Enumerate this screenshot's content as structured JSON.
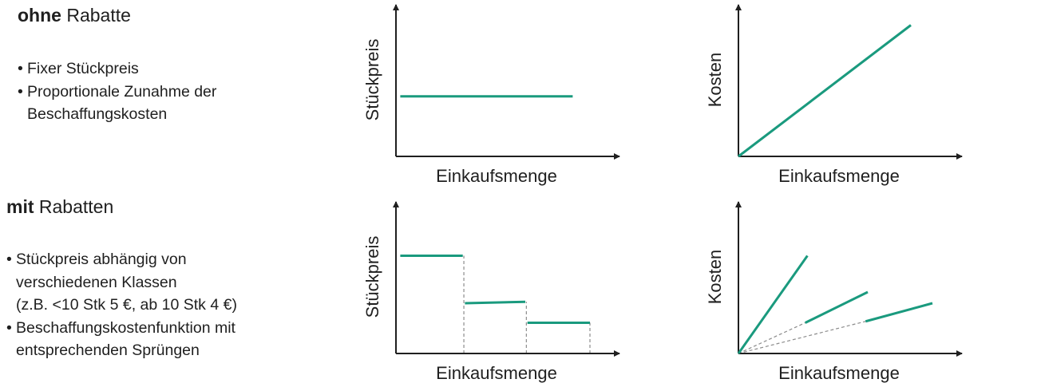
{
  "sections": [
    {
      "heading_bold": "ohne",
      "heading_rest": " Rabatte",
      "bullets": [
        [
          "Fixer Stückpreis"
        ],
        [
          "Proportionale Zunahme der",
          "Beschaffungskosten"
        ]
      ]
    },
    {
      "heading_bold": "mit",
      "heading_rest": " Rabatten",
      "bullets": [
        [
          "Stückpreis abhängig von",
          "verschiedenen Klassen",
          "(z.B. <10 Stk 5 €, ab 10 Stk 4 €)"
        ],
        [
          "Beschaffungskostenfunktion mit",
          "entsprechenden Sprüngen"
        ]
      ]
    }
  ],
  "colors": {
    "series": "#1a9a7e",
    "axis": "#1f1f1f",
    "guide": "#8c8c8c"
  },
  "chart_data": [
    {
      "type": "line",
      "title": "",
      "xlabel": "Einkaufsmenge",
      "ylabel": "Stückpreis",
      "xlim": [
        0,
        10
      ],
      "ylim": [
        0,
        10
      ],
      "segments": [
        {
          "points": [
            [
              0.2,
              4.3
            ],
            [
              8.2,
              4.3
            ]
          ],
          "style": "solid"
        }
      ]
    },
    {
      "type": "line",
      "title": "",
      "xlabel": "Einkaufsmenge",
      "ylabel": "Kosten",
      "xlim": [
        0,
        10
      ],
      "ylim": [
        0,
        10
      ],
      "segments": [
        {
          "points": [
            [
              0,
              0
            ],
            [
              8.0,
              9.4
            ]
          ],
          "style": "solid"
        }
      ]
    },
    {
      "type": "line",
      "title": "",
      "xlabel": "Einkaufsmenge",
      "ylabel": "Stückpreis",
      "xlim": [
        0,
        10
      ],
      "ylim": [
        0,
        10
      ],
      "segments": [
        {
          "points": [
            [
              0.2,
              7.0
            ],
            [
              3.1,
              7.0
            ]
          ],
          "style": "solid"
        },
        {
          "points": [
            [
              3.2,
              3.6
            ],
            [
              6.0,
              3.7
            ]
          ],
          "style": "solid"
        },
        {
          "points": [
            [
              6.1,
              2.2
            ],
            [
              9.0,
              2.2
            ]
          ],
          "style": "solid"
        },
        {
          "points": [
            [
              3.15,
              0
            ],
            [
              3.15,
              7.0
            ]
          ],
          "style": "dashed"
        },
        {
          "points": [
            [
              6.05,
              0
            ],
            [
              6.05,
              3.7
            ]
          ],
          "style": "dashed"
        },
        {
          "points": [
            [
              9.0,
              0
            ],
            [
              9.0,
              2.2
            ]
          ],
          "style": "dashed"
        }
      ]
    },
    {
      "type": "line",
      "title": "",
      "xlabel": "Einkaufsmenge",
      "ylabel": "Kosten",
      "xlim": [
        0,
        10
      ],
      "ylim": [
        0,
        10
      ],
      "segments": [
        {
          "points": [
            [
              0,
              0
            ],
            [
              3.2,
              7.0
            ]
          ],
          "style": "solid"
        },
        {
          "points": [
            [
              3.1,
              2.2
            ],
            [
              6.0,
              4.4
            ]
          ],
          "style": "solid"
        },
        {
          "points": [
            [
              5.9,
              2.3
            ],
            [
              9.0,
              3.6
            ]
          ],
          "style": "solid"
        },
        {
          "points": [
            [
              0,
              0
            ],
            [
              3.1,
              2.2
            ]
          ],
          "style": "dashed"
        },
        {
          "points": [
            [
              0,
              0
            ],
            [
              5.9,
              2.3
            ]
          ],
          "style": "dashed"
        }
      ]
    }
  ]
}
